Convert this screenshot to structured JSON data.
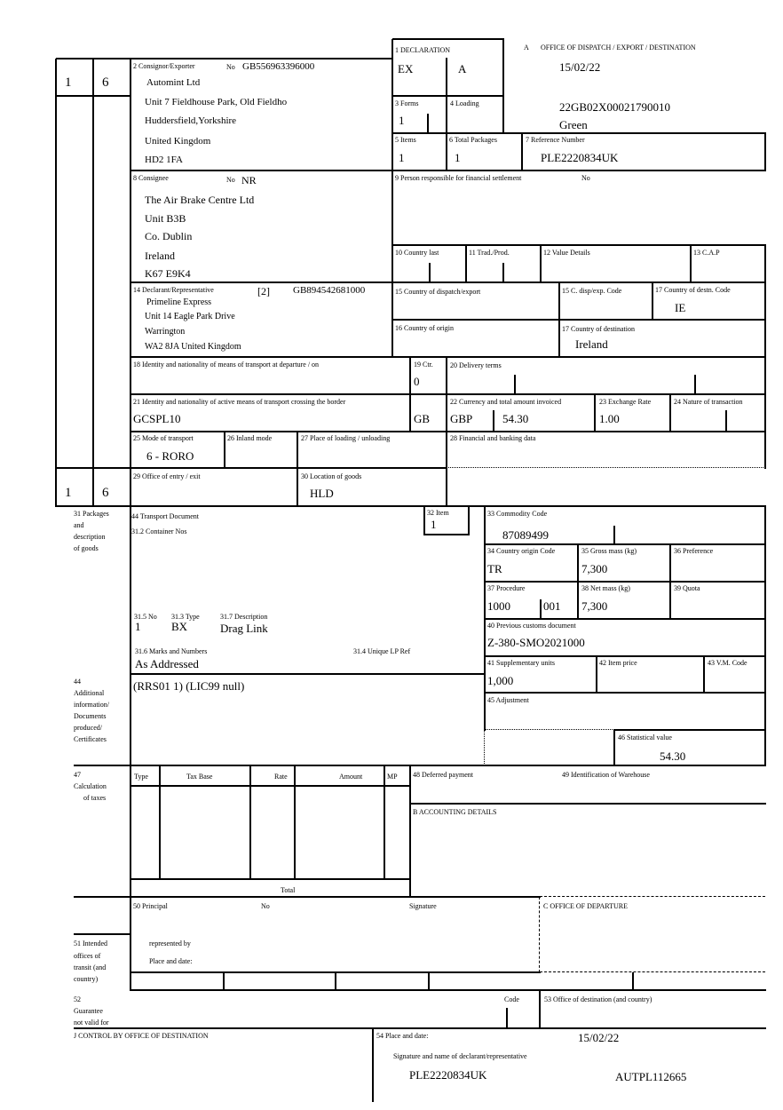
{
  "header": {
    "a": "A",
    "office": "OFFICE OF DISPATCH / EXPORT / DESTINATION",
    "date": "15/02/22",
    "mrn": "22GB02X00021790010",
    "route": "Green"
  },
  "copies": {
    "top": [
      "1",
      "6"
    ],
    "bottom": [
      "1",
      "6"
    ]
  },
  "box1": {
    "label": "1 DECLARATION",
    "type": "EX",
    "sub": "A"
  },
  "box2": {
    "label": "2 Consignor/Exporter",
    "no_label": "No",
    "eori": "GB556963396000",
    "lines": [
      "Automint Ltd",
      "Unit 7 Fieldhouse Park, Old Fieldho",
      "Huddersfield,Yorkshire",
      "United Kingdom",
      "HD2 1FA"
    ]
  },
  "box3": {
    "label": "3 Forms",
    "value": "1"
  },
  "box4": {
    "label": "4 Loading"
  },
  "box5": {
    "label": "5 Items",
    "value": "1"
  },
  "box6": {
    "label": "6 Total Packages",
    "value": "1"
  },
  "box7": {
    "label": "7 Reference Number",
    "value": "PLE2220834UK"
  },
  "box8": {
    "label": "8 Consignee",
    "no_label": "No",
    "no": "NR",
    "lines": [
      "The Air Brake Centre Ltd",
      "Unit B3B",
      "Co. Dublin",
      "Ireland",
      "K67 E9K4"
    ]
  },
  "box9": {
    "label": "9 Person responsible for financial settlement",
    "no_label": "No"
  },
  "box10": {
    "label": "10 Country last"
  },
  "box11": {
    "label": "11 Trad./Prod."
  },
  "box12": {
    "label": "12 Value Details"
  },
  "box13": {
    "label": "13 C.A.P"
  },
  "box14": {
    "label": "14 Declarant/Representative",
    "status": "[2]",
    "eori": "GB894542681000",
    "lines": [
      "Primeline Express",
      "Unit 14 Eagle Park Drive",
      "Warrington",
      "WA2 8JA United Kingdom"
    ]
  },
  "box15": {
    "label": "15 Country of dispatch/export"
  },
  "box15c": {
    "label": "15 C. disp/exp. Code"
  },
  "box17c": {
    "label": "17 Country of destn. Code",
    "value": "IE"
  },
  "box16": {
    "label": "16 Country of origin"
  },
  "box17": {
    "label": "17 Country of destination",
    "value": "Ireland"
  },
  "box18": {
    "label": "18 Identity and nationality of means of transport at departure / on"
  },
  "box19": {
    "label": "19 Ctr.",
    "value": "0"
  },
  "box20": {
    "label": "20 Delivery terms"
  },
  "box21": {
    "label": "21 Identity and nationality of active means of transport crossing the border",
    "value": "GCSPL10",
    "nationality": "GB"
  },
  "box22": {
    "label": "22 Currency and total amount invoiced",
    "currency": "GBP",
    "amount": "54.30"
  },
  "box23": {
    "label": "23 Exchange Rate",
    "value": "1.00"
  },
  "box24": {
    "label": "24 Nature of transaction"
  },
  "box25": {
    "label": "25 Mode of transport",
    "value": "6 - RORO"
  },
  "box26": {
    "label": "26 Inland mode"
  },
  "box27": {
    "label": "27 Place of loading / unloading"
  },
  "box28": {
    "label": "28 Financial and banking data"
  },
  "box29": {
    "label": "29 Office of entry / exit"
  },
  "box30": {
    "label": "30 Location of goods",
    "value": "HLD"
  },
  "box31": {
    "side": [
      "31 Packages",
      "and",
      "description",
      "of goods"
    ],
    "transport_doc": "44 Transport Document",
    "container": "31.2 Container Nos",
    "no_label": "31.5 No",
    "no": "1",
    "type_label": "31.3 Type",
    "type": "BX",
    "desc_label": "31.7 Description",
    "desc": "Drag Link",
    "marks_label": "31.6 Marks and Numbers",
    "marks": "As Addressed",
    "lp_label": "31.4 Unique LP Ref"
  },
  "box32": {
    "label": "32 Item",
    "value": "1"
  },
  "box33": {
    "label": "33 Commodity Code",
    "value": "87089499"
  },
  "box34": {
    "label": "34 Country origin Code",
    "value": "TR"
  },
  "box35": {
    "label": "35 Gross mass (kg)",
    "value": "7,300"
  },
  "box36": {
    "label": "36 Preference"
  },
  "box37": {
    "label": "37 Procedure",
    "value": "1000",
    "sub": "001"
  },
  "box38": {
    "label": "38 Net mass (kg)",
    "value": "7,300"
  },
  "box39": {
    "label": "39 Quota"
  },
  "box40": {
    "label": "40 Previous customs document",
    "value": "Z-380-SMO2021000"
  },
  "box41": {
    "label": "41 Supplementary units",
    "value": "1,000"
  },
  "box42": {
    "label": "42 Item price"
  },
  "box43": {
    "label": "43 V.M. Code"
  },
  "box44": {
    "side": [
      "44",
      "Additional",
      "information/",
      "Documents",
      "produced/",
      "Certificates"
    ],
    "value": "(RRS01 1) (LIC99 null)"
  },
  "box45": {
    "label": "45 Adjustment"
  },
  "box46": {
    "label": "46 Statistical value",
    "value": "54.30"
  },
  "box47": {
    "side": [
      "47",
      "Calculation",
      "of taxes"
    ],
    "columns": [
      "Type",
      "Tax Base",
      "Rate",
      "Amount",
      "MP"
    ],
    "total": "Total"
  },
  "box48": {
    "label": "48 Deferred payment"
  },
  "box49": {
    "label": "49 Identification of Warehouse"
  },
  "boxB": {
    "label": "B ACCOUNTING DETAILS"
  },
  "box50": {
    "label": "50 Principal",
    "no_label": "No",
    "signature": "Signature",
    "represented": "represented by",
    "place": "Place and date:"
  },
  "boxC": {
    "label": "C OFFICE OF DEPARTURE"
  },
  "box51": {
    "side": [
      "51 Intended",
      "offices of",
      "transit (and",
      "country)"
    ]
  },
  "box52": {
    "side": [
      "52",
      "Guarantee",
      "not valid for"
    ],
    "code": "Code"
  },
  "box53": {
    "label": "53 Office of destination (and country)"
  },
  "boxJ": {
    "label": "J CONTROL BY OFFICE OF DESTINATION"
  },
  "box54": {
    "label": "54 Place and date:",
    "date": "15/02/22",
    "sig_label": "Signature and name of declarant/representative",
    "ref": "PLE2220834UK",
    "auth": "AUTPL112665"
  }
}
